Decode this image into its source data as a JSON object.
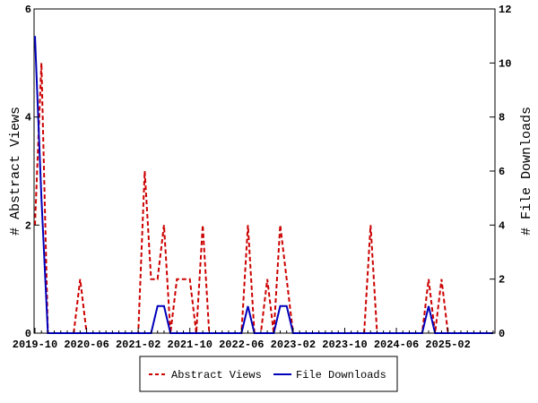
{
  "chart_data": {
    "type": "line",
    "x": [
      "2019-10",
      "2019-11",
      "2019-12",
      "2020-01",
      "2020-02",
      "2020-03",
      "2020-04",
      "2020-05",
      "2020-06",
      "2020-07",
      "2020-08",
      "2020-09",
      "2020-10",
      "2020-11",
      "2020-12",
      "2021-01",
      "2021-02",
      "2021-03",
      "2021-04",
      "2021-05",
      "2021-06",
      "2021-07",
      "2021-08",
      "2021-09",
      "2021-10",
      "2021-11",
      "2021-12",
      "2022-01",
      "2022-02",
      "2022-03",
      "2022-04",
      "2022-05",
      "2022-06",
      "2022-07",
      "2022-08",
      "2022-09",
      "2022-10",
      "2022-11",
      "2022-12",
      "2023-01",
      "2023-02",
      "2023-03",
      "2023-04",
      "2023-05",
      "2023-06",
      "2023-07",
      "2023-08",
      "2023-09",
      "2023-10",
      "2023-11",
      "2023-12",
      "2024-01",
      "2024-02",
      "2024-03",
      "2024-04",
      "2024-05",
      "2024-06",
      "2024-07",
      "2024-08",
      "2024-09",
      "2024-10",
      "2024-11",
      "2024-12",
      "2025-01",
      "2025-02",
      "2025-03",
      "2025-04",
      "2025-05",
      "2025-06",
      "2025-07",
      "2025-08",
      "2025-09"
    ],
    "series": [
      {
        "name": "Abstract Views",
        "axis": "left",
        "color": "#cc0000",
        "style": "dashed",
        "values": [
          2,
          5,
          0,
          0,
          0,
          0,
          0,
          1,
          0,
          0,
          0,
          0,
          0,
          0,
          0,
          0,
          0,
          3,
          1,
          1,
          2,
          0,
          1,
          1,
          1,
          0,
          2,
          0,
          0,
          0,
          0,
          0,
          0,
          2,
          0,
          0,
          1,
          0,
          2,
          1,
          0,
          0,
          0,
          0,
          0,
          0,
          0,
          0,
          0,
          0,
          0,
          0,
          2,
          0,
          0,
          0,
          0,
          0,
          0,
          0,
          0,
          1,
          0,
          1,
          0,
          0,
          0,
          0,
          0,
          0,
          0,
          0
        ]
      },
      {
        "name": "File Downloads",
        "axis": "right",
        "color": "#0000bb",
        "style": "solid",
        "values": [
          11,
          5,
          0,
          0,
          0,
          0,
          0,
          0,
          0,
          0,
          0,
          0,
          0,
          0,
          0,
          0,
          0,
          0,
          0,
          1,
          1,
          0,
          0,
          0,
          0,
          0,
          0,
          0,
          0,
          0,
          0,
          0,
          0,
          1,
          0,
          0,
          0,
          0,
          1,
          1,
          0,
          0,
          0,
          0,
          0,
          0,
          0,
          0,
          0,
          0,
          0,
          0,
          0,
          0,
          0,
          0,
          0,
          0,
          0,
          0,
          0,
          1,
          0,
          0,
          0,
          0,
          0,
          0,
          0,
          0,
          0,
          0
        ]
      }
    ],
    "xtick_labels": [
      "2019-10",
      "2020-06",
      "2021-02",
      "2021-10",
      "2022-06",
      "2023-02",
      "2023-10",
      "2024-06",
      "2025-02"
    ],
    "ylabel": "# Abstract Views",
    "y2label": "# File Downloads",
    "ylim": [
      0,
      6
    ],
    "y2lim": [
      0,
      12
    ],
    "yticks": [
      "0",
      "2",
      "4",
      "6"
    ],
    "y2ticks": [
      "0",
      "2",
      "4",
      "6",
      "8",
      "10",
      "12"
    ],
    "legend": {
      "placement": "bottom",
      "entries": [
        "Abstract Views",
        "File Downloads"
      ]
    },
    "grid": false
  }
}
